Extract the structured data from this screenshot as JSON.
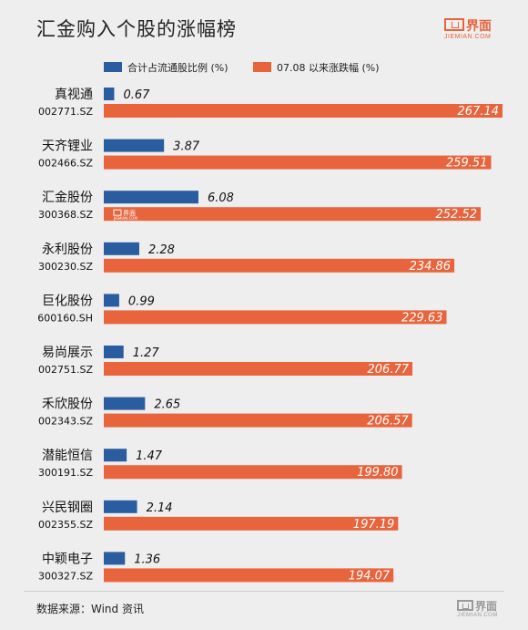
{
  "title": "汇金购入个股的涨幅榜",
  "brand": {
    "cn": "界面",
    "en": "JIEMIAN.COM"
  },
  "source": "数据来源：Wind 资讯",
  "colors": {
    "ratio": "#2a5d9f",
    "gain": "#e8643c",
    "watermark": "#ffffff"
  },
  "chart_data": {
    "type": "bar",
    "orientation": "horizontal",
    "legend_position": "top",
    "series": [
      {
        "name": "合计占流通股比例 (%)",
        "key": "ratio",
        "values": [
          0.67,
          3.87,
          6.08,
          2.28,
          0.99,
          1.27,
          2.65,
          1.47,
          2.14,
          1.36
        ]
      },
      {
        "name": "07.08 以来涨跌幅 (%)",
        "key": "gain",
        "values": [
          267.14,
          259.51,
          252.52,
          234.86,
          229.63,
          206.77,
          206.57,
          199.8,
          197.19,
          194.07
        ]
      }
    ],
    "categories": [
      {
        "name": "真视通",
        "code": "002771.SZ"
      },
      {
        "name": "天齐锂业",
        "code": "002466.SZ"
      },
      {
        "name": "汇金股份",
        "code": "300368.SZ"
      },
      {
        "name": "永利股份",
        "code": "300230.SZ"
      },
      {
        "name": "巨化股份",
        "code": "600160.SH"
      },
      {
        "name": "易尚展示",
        "code": "002751.SZ"
      },
      {
        "name": "禾欣股份",
        "code": "002343.SZ"
      },
      {
        "name": "潜能恒信",
        "code": "300191.SZ"
      },
      {
        "name": "兴民钢圈",
        "code": "002355.SZ"
      },
      {
        "name": "中颖电子",
        "code": "300327.SZ"
      }
    ],
    "value_labels": {
      "ratio": [
        "0.67",
        "3.87",
        "6.08",
        "2.28",
        "0.99",
        "1.27",
        "2.65",
        "1.47",
        "2.14",
        "1.36"
      ],
      "gain": [
        "267.14",
        "259.51",
        "252.52",
        "234.86",
        "229.63",
        "206.77",
        "206.57",
        "199.80",
        "197.19",
        "194.07"
      ]
    },
    "watermark": {
      "row_index": 2,
      "cn": "界面",
      "en": "JIEMIAN.COM"
    }
  }
}
